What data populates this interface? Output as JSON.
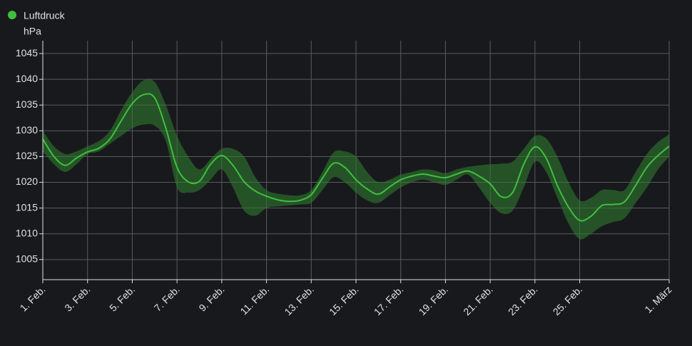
{
  "chart_data": {
    "type": "line",
    "y_label": "hPa",
    "x": [
      0,
      0.5,
      1,
      1.5,
      2,
      2.5,
      3,
      3.5,
      4,
      4.5,
      5,
      5.5,
      6,
      6.5,
      7,
      7.5,
      8,
      8.5,
      9,
      9.5,
      10,
      10.5,
      11,
      11.5,
      12,
      12.5,
      13,
      13.5,
      14,
      14.5,
      15,
      15.5,
      16,
      16.5,
      17,
      17.5,
      18,
      18.5,
      19,
      19.5,
      20,
      20.5,
      21,
      21.5,
      22,
      22.5,
      23,
      23.5,
      24,
      24.5,
      25,
      25.5,
      26,
      26.5,
      27,
      27.5,
      28
    ],
    "series": [
      {
        "name": "Luftdruck",
        "color": "#3fbf3f",
        "values": [
          1028.4,
          1025,
          1023.3,
          1024.7,
          1025.9,
          1026.6,
          1028.4,
          1031.9,
          1035.3,
          1037,
          1036.4,
          1030.5,
          1022.9,
          1020.1,
          1020.2,
          1023.5,
          1025.2,
          1023.3,
          1020.1,
          1018.3,
          1017.3,
          1016.6,
          1016.3,
          1016.5,
          1017.6,
          1020.8,
          1023.7,
          1022.9,
          1020.5,
          1018.7,
          1017.7,
          1019.1,
          1020.5,
          1021.2,
          1021.6,
          1021.2,
          1020.9,
          1021.6,
          1022.2,
          1021.2,
          1019.7,
          1017.2,
          1018,
          1023.5,
          1026.9,
          1024.7,
          1019.4,
          1015.2,
          1012.6,
          1013.4,
          1015.5,
          1015.7,
          1016.2,
          1019.4,
          1022.9,
          1025.2,
          1027
        ]
      }
    ],
    "band": {
      "color": "#2f7a2f",
      "upper": [
        1030,
        1027,
        1025.5,
        1026,
        1027,
        1028,
        1030,
        1034,
        1037.5,
        1039.8,
        1039.5,
        1035,
        1029,
        1025,
        1022.5,
        1024.5,
        1026.5,
        1026.5,
        1025,
        1021,
        1018.5,
        1017.8,
        1017.5,
        1017.5,
        1018.5,
        1022,
        1025.8,
        1026,
        1025,
        1022,
        1020,
        1020.5,
        1021.5,
        1022,
        1022.5,
        1022.3,
        1021.8,
        1022.5,
        1023,
        1023.3,
        1023.5,
        1023.6,
        1024,
        1026.5,
        1029,
        1028.5,
        1025,
        1020,
        1016.5,
        1017,
        1018.5,
        1018.5,
        1018.5,
        1022,
        1025.5,
        1027.8,
        1029.3
      ],
      "lower": [
        1026,
        1023.5,
        1022,
        1023.5,
        1025.5,
        1026,
        1027.5,
        1029,
        1030.5,
        1031.2,
        1031,
        1028,
        1019,
        1018,
        1018.5,
        1020.5,
        1022.5,
        1019,
        1014.5,
        1013.5,
        1015,
        1015.3,
        1015.5,
        1015.7,
        1016,
        1018.5,
        1021,
        1020,
        1018,
        1016.5,
        1016,
        1017.5,
        1019,
        1020,
        1020.5,
        1020,
        1019.5,
        1020.5,
        1021.5,
        1019,
        1016,
        1014,
        1014.5,
        1019,
        1024,
        1022,
        1017,
        1012,
        1009,
        1010,
        1011.5,
        1012.3,
        1013,
        1016,
        1019,
        1022.5,
        1025
      ]
    },
    "xlim": [
      0,
      28
    ],
    "xticks": [
      {
        "value": 0,
        "label": "1. Feb."
      },
      {
        "value": 2,
        "label": "3. Feb."
      },
      {
        "value": 4,
        "label": "5. Feb."
      },
      {
        "value": 6,
        "label": "7. Feb."
      },
      {
        "value": 8,
        "label": "9. Feb."
      },
      {
        "value": 10,
        "label": "11. Feb."
      },
      {
        "value": 12,
        "label": "13. Feb."
      },
      {
        "value": 14,
        "label": "15. Feb."
      },
      {
        "value": 16,
        "label": "17. Feb."
      },
      {
        "value": 18,
        "label": "19. Feb."
      },
      {
        "value": 20,
        "label": "21. Feb."
      },
      {
        "value": 22,
        "label": "23. Feb."
      },
      {
        "value": 24,
        "label": "25. Feb."
      },
      {
        "value": 28,
        "label": "1. März"
      }
    ],
    "ylim": [
      1001.1,
      1047.5
    ],
    "yticks": [
      1005,
      1010,
      1015,
      1020,
      1025,
      1030,
      1035,
      1040,
      1045
    ],
    "grid": true
  }
}
